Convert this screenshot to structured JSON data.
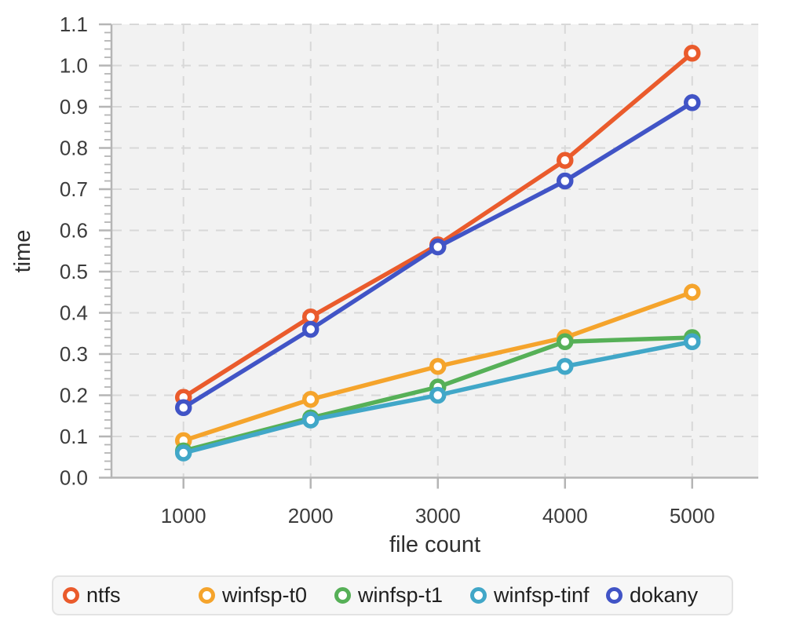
{
  "chart_data": {
    "type": "line",
    "title": "",
    "xlabel": "file count",
    "ylabel": "time",
    "x": [
      1000,
      2000,
      3000,
      4000,
      5000
    ],
    "x_tick_labels": [
      "1000",
      "2000",
      "3000",
      "4000",
      "5000"
    ],
    "y_tick_labels": [
      "0.0",
      "0.1",
      "0.2",
      "0.3",
      "0.4",
      "0.5",
      "0.6",
      "0.7",
      "0.8",
      "0.9",
      "1.0",
      "1.1"
    ],
    "y_minor_step": 0.02,
    "xlim": [
      440,
      5520
    ],
    "ylim": [
      0,
      1.1
    ],
    "grid": "dashed",
    "legend_position": "bottom",
    "series": [
      {
        "name": "ntfs",
        "color": "#ea5b2c",
        "values": [
          0.195,
          0.39,
          0.565,
          0.77,
          1.03
        ]
      },
      {
        "name": "winfsp-t0",
        "color": "#f5a42c",
        "values": [
          0.09,
          0.19,
          0.27,
          0.34,
          0.45
        ]
      },
      {
        "name": "winfsp-t1",
        "color": "#56b057",
        "values": [
          0.065,
          0.145,
          0.22,
          0.33,
          0.34
        ]
      },
      {
        "name": "winfsp-tinf",
        "color": "#41a7c8",
        "values": [
          0.06,
          0.14,
          0.2,
          0.27,
          0.33
        ]
      },
      {
        "name": "dokany",
        "color": "#4154c6",
        "values": [
          0.17,
          0.36,
          0.56,
          0.72,
          0.91
        ]
      }
    ]
  },
  "styles": {
    "plot_bg": "#f2f2f2",
    "grid_color": "#d8d8d8",
    "axis_color": "#b5b5b5",
    "tick_text_color": "#3c3c3c",
    "title_text_color": "#2f2f2f",
    "marker_fill": "#ffffff",
    "legend_bg": "#f7f7f7",
    "legend_border": "#e3e3e3"
  }
}
